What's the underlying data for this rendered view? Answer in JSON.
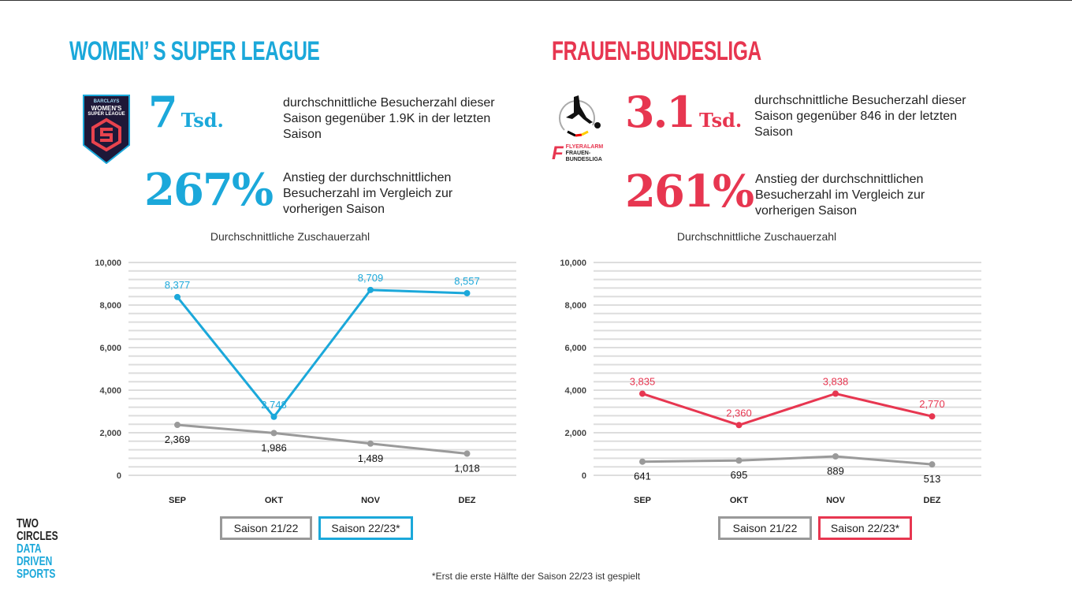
{
  "left": {
    "title": "WOMEN’ S SUPER LEAGUE",
    "logo_text": [
      "BARCLAYS",
      "WOMEN'S",
      "SUPER LEAGUE"
    ],
    "stat1_value": "7",
    "stat1_unit": "Tsd.",
    "stat1_desc": "durchschnittliche Besucherzahl dieser Saison gegenüber 1.9K in der letzten Saison",
    "stat2_value": "267%",
    "stat2_desc": "Anstieg der durchschnittlichen Besucherzahl im Vergleich zur vorherigen Saison",
    "legend": [
      "Saison 21/22",
      "Saison 22/23*"
    ]
  },
  "right": {
    "title": "FRAUEN-BUNDESLIGA",
    "logo_text": [
      "FLYERALARM",
      "FRAUEN-",
      "BUNDESLIGA"
    ],
    "stat1_value": "3.1",
    "stat1_unit": "Tsd.",
    "stat1_desc": "durchschnittliche Besucherzahl dieser Saison gegenüber 846 in der letzten Saison",
    "stat2_value": "261%",
    "stat2_desc": "Anstieg der durchschnittlichen Besucherzahl im Vergleich zur vorherigen Saison",
    "legend": [
      "Saison 21/22",
      "Saison 22/23*"
    ]
  },
  "colors": {
    "blue": "#1ba8da",
    "red": "#e73650",
    "gray": "#9a9a9a"
  },
  "footnote": "*Erst die erste Hälfte der Saison 22/23 ist gespielt",
  "brand": {
    "lines": [
      "TWO",
      "CIRCLES",
      "DATA",
      "DRIVEN",
      "SPORTS"
    ]
  },
  "chart_data": [
    {
      "type": "line",
      "title": "Durchschnittliche Zuschauerzahl",
      "categories": [
        "SEP",
        "OKT",
        "NOV",
        "DEZ"
      ],
      "ylim": [
        0,
        10000
      ],
      "yticks": [
        0,
        2000,
        4000,
        6000,
        8000,
        10000
      ],
      "ytick_labels": [
        "0",
        "2,000",
        "4,000",
        "6,000",
        "8,000",
        "10,000"
      ],
      "series": [
        {
          "name": "Saison 21/22",
          "values": [
            2369,
            1986,
            1489,
            1018
          ],
          "labels": [
            "2,369",
            "1,986",
            "1,489",
            "1,018"
          ]
        },
        {
          "name": "Saison 22/23*",
          "values": [
            8377,
            2748,
            8709,
            8557
          ],
          "labels": [
            "8,377",
            "2,748",
            "8,709",
            "8,557"
          ]
        }
      ]
    },
    {
      "type": "line",
      "title": "Durchschnittliche Zuschauerzahl",
      "categories": [
        "SEP",
        "OKT",
        "NOV",
        "DEZ"
      ],
      "ylim": [
        0,
        10000
      ],
      "yticks": [
        0,
        2000,
        4000,
        6000,
        8000,
        10000
      ],
      "ytick_labels": [
        "0",
        "2,000",
        "4,000",
        "6,000",
        "8,000",
        "10,000"
      ],
      "series": [
        {
          "name": "Saison 21/22",
          "values": [
            641,
            695,
            889,
            513
          ],
          "labels": [
            "641",
            "695",
            "889",
            "513"
          ]
        },
        {
          "name": "Saison 22/23*",
          "values": [
            3835,
            2360,
            3838,
            2770
          ],
          "labels": [
            "3,835",
            "2,360",
            "3,838",
            "2,770"
          ]
        }
      ]
    }
  ]
}
